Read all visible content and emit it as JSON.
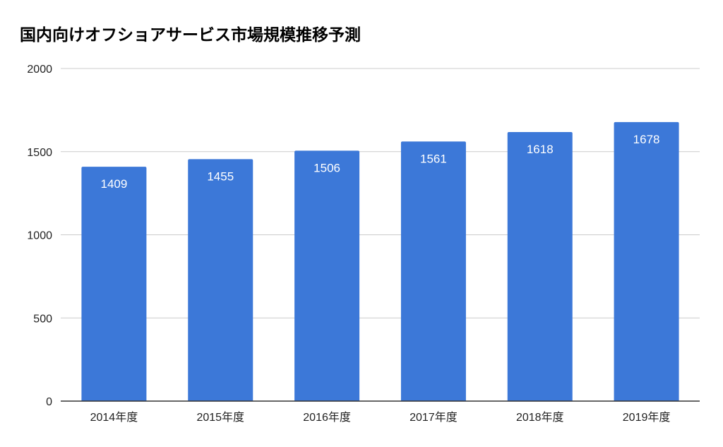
{
  "chart_data": {
    "type": "bar",
    "title": "国内向けオフショアサービス市場規模推移予測",
    "categories": [
      "2014年度",
      "2015年度",
      "2016年度",
      "2017年度",
      "2018年度",
      "2019年度"
    ],
    "values": [
      1409,
      1455,
      1506,
      1561,
      1618,
      1678
    ],
    "data_labels": [
      "1409",
      "1455",
      "1506",
      "1561",
      "1618",
      "1678"
    ],
    "y_ticks": [
      "0",
      "500",
      "1000",
      "1500",
      "2000"
    ],
    "ylim": [
      0,
      2000
    ],
    "xlabel": "",
    "ylabel": "",
    "grid": true,
    "legend": "none",
    "bar_color": "#3c78d8",
    "gridline_color": "#cccccc",
    "label_color": "#ffffff"
  }
}
